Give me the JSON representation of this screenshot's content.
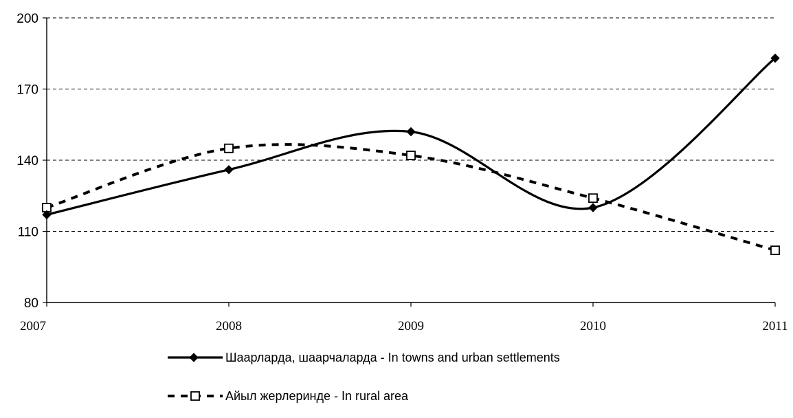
{
  "chart_data": {
    "type": "line",
    "x": [
      "2007",
      "2008",
      "2009",
      "2010",
      "2011"
    ],
    "ylim": [
      80,
      200
    ],
    "yticks": [
      "80",
      "110",
      "140",
      "170",
      "200"
    ],
    "grid": "horizontal dashed",
    "smoothed": true,
    "series": [
      {
        "name": "Шаарларда, шаарчаларда - In towns and urban settlements",
        "values": [
          117,
          136,
          152,
          120,
          183
        ],
        "color": "#000000",
        "line_style": "solid",
        "marker": "filled-diamond"
      },
      {
        "name": "Айыл жерлеринде - In rural area",
        "values": [
          120,
          145,
          142,
          124,
          102
        ],
        "color": "#000000",
        "line_style": "dashed",
        "marker": "hollow-square"
      }
    ],
    "legend_position": "bottom"
  }
}
